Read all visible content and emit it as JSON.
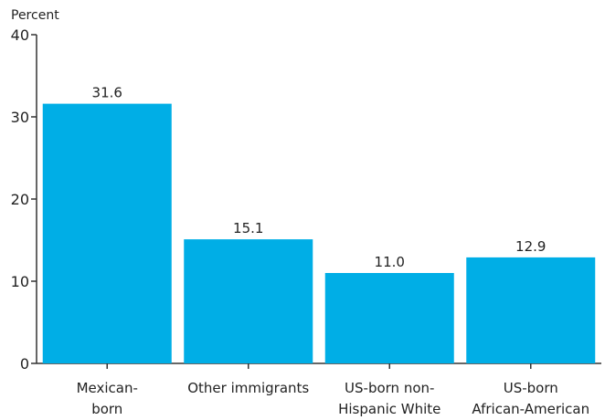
{
  "chart_data": {
    "type": "bar",
    "ylabel": "Percent",
    "ylim": [
      0,
      40
    ],
    "yticks": [
      0,
      10,
      20,
      30,
      40
    ],
    "categories": [
      [
        "Mexican-",
        "born"
      ],
      [
        "Other immigrants"
      ],
      [
        "US-born non-",
        "Hispanic White"
      ],
      [
        "US-born",
        "African-American"
      ]
    ],
    "values": [
      31.6,
      15.1,
      11.0,
      12.9
    ],
    "value_labels": [
      "31.6",
      "15.1",
      "11.0",
      "12.9"
    ],
    "grid": false,
    "legend": "none",
    "colors": {
      "bar": "#00aee6",
      "axis": "#333333",
      "text": "#222222"
    }
  }
}
